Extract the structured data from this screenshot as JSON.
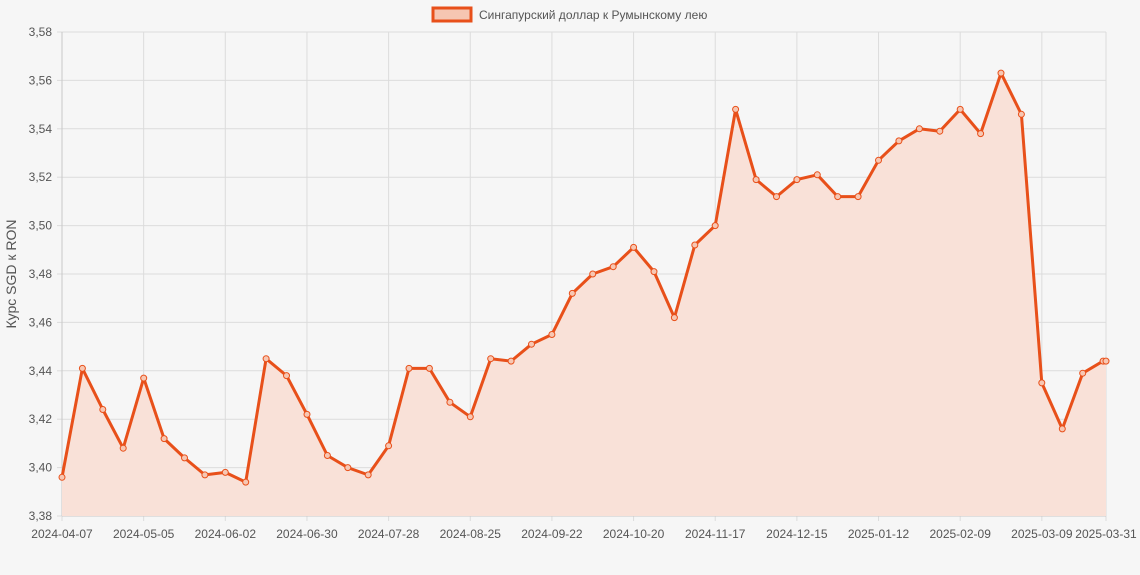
{
  "chart_data": {
    "type": "area",
    "legend": {
      "label": "Сингапурский доллар к Румынскому лею",
      "position": "top-center"
    },
    "ylabel": "Курс SGD к RON",
    "xlabel": "",
    "ylim": [
      3.38,
      3.58
    ],
    "yticks": [
      "3,38",
      "3,40",
      "3,42",
      "3,44",
      "3,46",
      "3,48",
      "3,50",
      "3,52",
      "3,54",
      "3,56",
      "3,58"
    ],
    "xticks": [
      "2024-04-07",
      "2024-05-05",
      "2024-06-02",
      "2024-06-30",
      "2024-07-28",
      "2024-08-25",
      "2024-09-22",
      "2024-10-20",
      "2024-11-17",
      "2024-12-15",
      "2025-01-12",
      "2025-02-09",
      "2025-03-09",
      "2025-03-31"
    ],
    "grid": true,
    "colors": {
      "line": "#e8501a",
      "fill": "#f9e1d8",
      "grid": "#dcdcdc",
      "axis": "#555555"
    },
    "series": [
      {
        "name": "Сингапурский доллар к Румынскому лею",
        "x": [
          "2024-04-07",
          "2024-04-14",
          "2024-04-21",
          "2024-04-28",
          "2024-05-05",
          "2024-05-12",
          "2024-05-19",
          "2024-05-26",
          "2024-06-02",
          "2024-06-09",
          "2024-06-16",
          "2024-06-23",
          "2024-06-30",
          "2024-07-07",
          "2024-07-14",
          "2024-07-21",
          "2024-07-28",
          "2024-08-04",
          "2024-08-11",
          "2024-08-18",
          "2024-08-25",
          "2024-09-01",
          "2024-09-08",
          "2024-09-15",
          "2024-09-22",
          "2024-09-29",
          "2024-10-06",
          "2024-10-13",
          "2024-10-20",
          "2024-10-27",
          "2024-11-03",
          "2024-11-10",
          "2024-11-17",
          "2024-11-24",
          "2024-12-01",
          "2024-12-08",
          "2024-12-15",
          "2024-12-22",
          "2024-12-29",
          "2025-01-05",
          "2025-01-12",
          "2025-01-19",
          "2025-01-26",
          "2025-02-02",
          "2025-02-09",
          "2025-02-16",
          "2025-02-23",
          "2025-03-02",
          "2025-03-09",
          "2025-03-16",
          "2025-03-23",
          "2025-03-30",
          "2025-03-31"
        ],
        "values": [
          3.396,
          3.441,
          3.424,
          3.408,
          3.437,
          3.412,
          3.404,
          3.397,
          3.398,
          3.394,
          3.445,
          3.438,
          3.422,
          3.405,
          3.4,
          3.397,
          3.409,
          3.441,
          3.441,
          3.427,
          3.421,
          3.445,
          3.444,
          3.451,
          3.455,
          3.472,
          3.48,
          3.483,
          3.491,
          3.481,
          3.462,
          3.492,
          3.5,
          3.548,
          3.519,
          3.512,
          3.519,
          3.521,
          3.512,
          3.512,
          3.527,
          3.535,
          3.54,
          3.539,
          3.548,
          3.538,
          3.563,
          3.546,
          3.435,
          3.416,
          3.439,
          3.444,
          3.444
        ]
      }
    ]
  }
}
